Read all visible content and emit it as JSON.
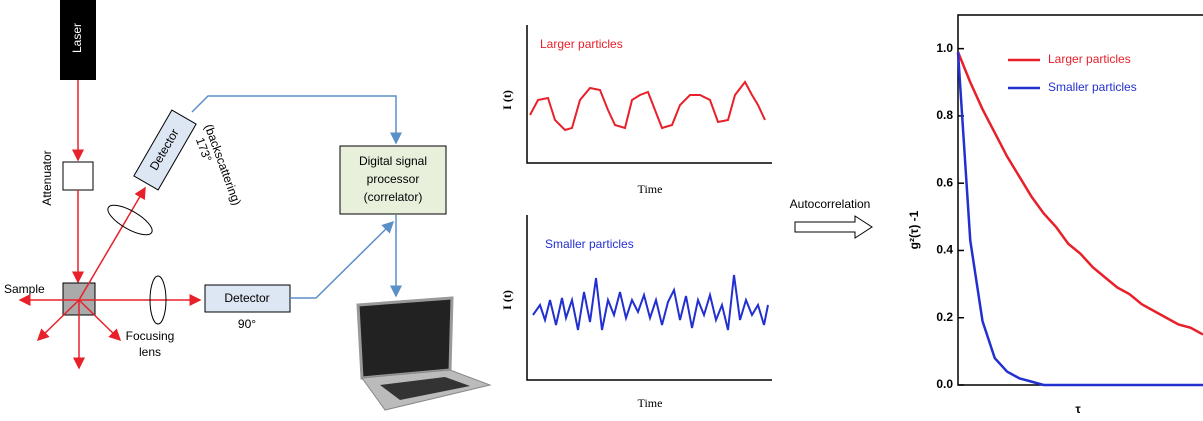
{
  "diagram": {
    "laser": "Laser",
    "attenuator": "Attenuator",
    "sample": "Sample",
    "detector_1": "Detector",
    "angle_1": "173°",
    "backscattering": "(backscattering)",
    "focusing_lens": [
      "Focusing",
      "lens"
    ],
    "detector_2": "Detector",
    "angle_2": "90°",
    "processor": [
      "Digital signal",
      "processor",
      "(correlator)"
    ]
  },
  "signals": {
    "top_label": "Larger particles",
    "bottom_label": "Smaller particles",
    "y_label": "I (t)",
    "x_label": "Time",
    "arrow_label": "Autocorrelation"
  },
  "chart_data": {
    "type": "line",
    "ylabel": "g²(τ) -1",
    "xlabel": "τ",
    "x": [
      0,
      5,
      10,
      15,
      20,
      25,
      30,
      35,
      40,
      45,
      50,
      55,
      60,
      65,
      70,
      75,
      80,
      85,
      90,
      95,
      100
    ],
    "xlim": [
      0,
      100
    ],
    "ylim": [
      0,
      1.1
    ],
    "yticks": [
      {
        "value": 0,
        "label": "0.0"
      },
      0.2,
      0.4,
      0.6,
      0.8,
      {
        "value": 1,
        "label": "1.0"
      }
    ],
    "legend": "upper right",
    "series": [
      {
        "name": "Larger particles",
        "color": "#e8202a",
        "values": [
          0.99,
          0.9,
          0.82,
          0.75,
          0.68,
          0.62,
          0.56,
          0.51,
          0.47,
          0.42,
          0.39,
          0.35,
          0.32,
          0.29,
          0.27,
          0.24,
          0.22,
          0.2,
          0.18,
          0.17,
          0.15
        ]
      },
      {
        "name": "Smaller particles",
        "color": "#2330d0",
        "values": [
          0.99,
          0.43,
          0.19,
          0.08,
          0.04,
          0.02,
          0.01,
          0,
          0,
          0,
          0,
          0,
          0,
          0,
          0,
          0,
          0,
          0,
          0,
          0,
          0
        ]
      }
    ]
  }
}
